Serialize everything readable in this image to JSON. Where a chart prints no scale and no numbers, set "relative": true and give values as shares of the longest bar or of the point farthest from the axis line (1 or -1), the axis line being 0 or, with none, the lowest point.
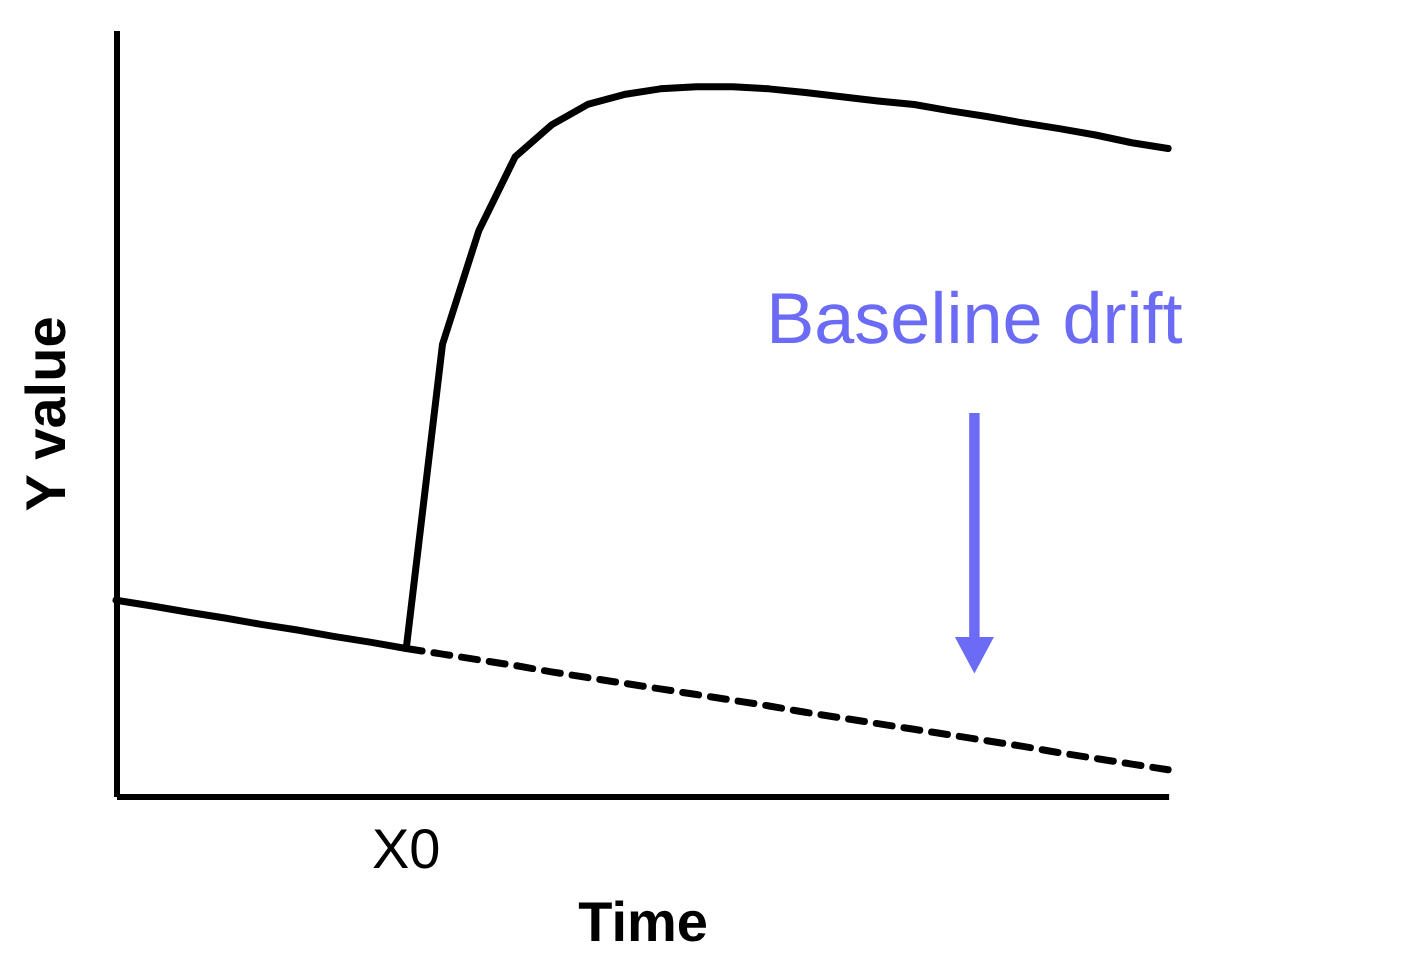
{
  "chart_data": {
    "type": "line",
    "relative": true,
    "xlabel": "Time",
    "ylabel": "Y value",
    "grid": false,
    "marker": "none",
    "categories": [
      null,
      null,
      null,
      null,
      null,
      null,
      null,
      null,
      null,
      null,
      null,
      null,
      null,
      null,
      null,
      null,
      null,
      null,
      null,
      null,
      null,
      null,
      null,
      null,
      null,
      null,
      null,
      null,
      null,
      null
    ],
    "series": [
      {
        "color": "#000000",
        "line_style": "solid",
        "values": [
          0.276,
          0.268,
          0.259,
          0.251,
          0.242,
          0.234,
          0.225,
          0.217,
          0.208,
          0.637,
          0.797,
          0.901,
          0.946,
          0.975,
          0.989,
          0.997,
          1.0,
          1.0,
          0.997,
          0.992,
          0.986,
          0.98,
          0.975,
          0.966,
          0.958,
          0.949,
          0.941,
          0.932,
          0.921,
          0.913
        ]
      },
      {
        "color": "#000000",
        "line_style": "dashed",
        "values": [
          null,
          null,
          null,
          null,
          null,
          null,
          null,
          null,
          0.208,
          0.2,
          0.192,
          0.184,
          0.175,
          0.167,
          0.159,
          0.151,
          0.143,
          0.135,
          0.127,
          0.118,
          0.11,
          0.102,
          0.094,
          0.086,
          0.078,
          0.07,
          0.061,
          0.053,
          0.045,
          0.037
        ]
      }
    ],
    "annotations": [
      "Baseline drift",
      "X0"
    ]
  }
}
